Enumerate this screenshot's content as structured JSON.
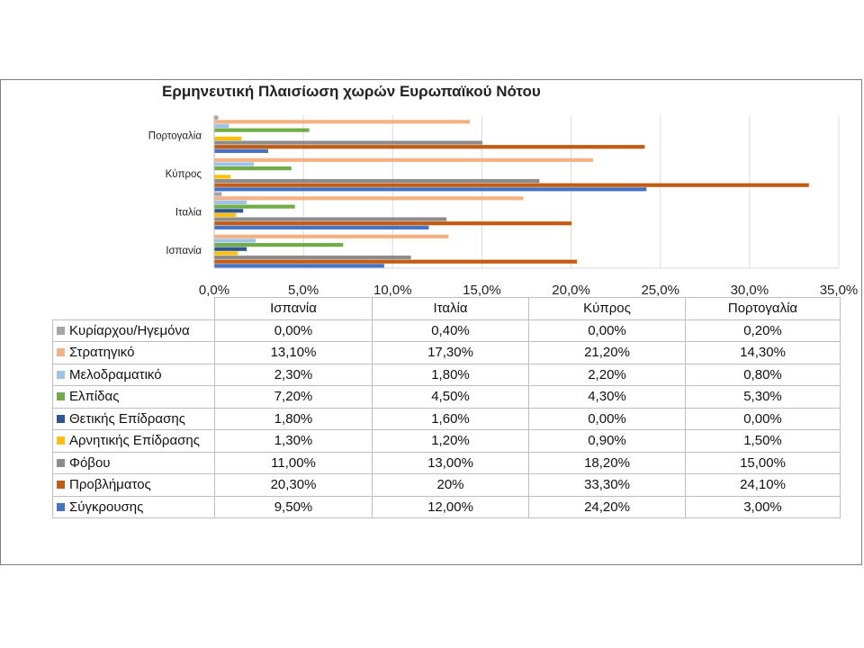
{
  "chart_data": {
    "type": "bar",
    "orientation": "horizontal",
    "title": "Ερμηνευτική Πλαισίωση χωρών Ευρωπαϊκού Νότου",
    "categories": [
      "Ισπανία",
      "Ιταλία",
      "Κύπρος",
      "Πορτογαλία"
    ],
    "xlim": [
      0,
      35
    ],
    "x_ticks": [
      "0,0%",
      "5,0%",
      "10,0%",
      "15,0%",
      "20,0%",
      "25,0%",
      "30,0%",
      "35,0%"
    ],
    "grid": true,
    "legend": "data-table",
    "series": [
      {
        "name": "Κυρίαρχου/Ηγεμόνα",
        "color": "#a5a5a5",
        "values": [
          0.0,
          0.4,
          0.0,
          0.2
        ],
        "labels": [
          "0,00%",
          "0,40%",
          "0,00%",
          "0,20%"
        ]
      },
      {
        "name": "Στρατηγικό",
        "color": "#f4b183",
        "values": [
          13.1,
          17.3,
          21.2,
          14.3
        ],
        "labels": [
          "13,10%",
          "17,30%",
          "21,20%",
          "14,30%"
        ]
      },
      {
        "name": "Μελοδραματικό",
        "color": "#9dc3e6",
        "values": [
          2.3,
          1.8,
          2.2,
          0.8
        ],
        "labels": [
          "2,30%",
          "1,80%",
          "2,20%",
          "0,80%"
        ]
      },
      {
        "name": "Ελπίδας",
        "color": "#70ad47",
        "values": [
          7.2,
          4.5,
          4.3,
          5.3
        ],
        "labels": [
          "7,20%",
          "4,50%",
          "4,30%",
          "5,30%"
        ]
      },
      {
        "name": "Θετικής Επίδρασης",
        "color": "#2f5597",
        "values": [
          1.8,
          1.6,
          0.0,
          0.0
        ],
        "labels": [
          "1,80%",
          "1,60%",
          "0,00%",
          "0,00%"
        ]
      },
      {
        "name": "Αρνητικής Επίδρασης",
        "color": "#ffc000",
        "values": [
          1.3,
          1.2,
          0.9,
          1.5
        ],
        "labels": [
          "1,30%",
          "1,20%",
          "0,90%",
          "1,50%"
        ]
      },
      {
        "name": "Φόβου",
        "color": "#8c8c8c",
        "values": [
          11.0,
          13.0,
          18.2,
          15.0
        ],
        "labels": [
          "11,00%",
          "13,00%",
          "18,20%",
          "15,00%"
        ]
      },
      {
        "name": "Προβλήματος",
        "color": "#c55a11",
        "values": [
          20.3,
          20.0,
          33.3,
          24.1
        ],
        "labels": [
          "20,30%",
          "20%",
          "33,30%",
          "24,10%"
        ]
      },
      {
        "name": "Σύγκρουσης",
        "color": "#4472c4",
        "values": [
          9.5,
          12.0,
          24.2,
          3.0
        ],
        "labels": [
          "9,50%",
          "12,00%",
          "24,20%",
          "3,00%"
        ]
      }
    ]
  }
}
